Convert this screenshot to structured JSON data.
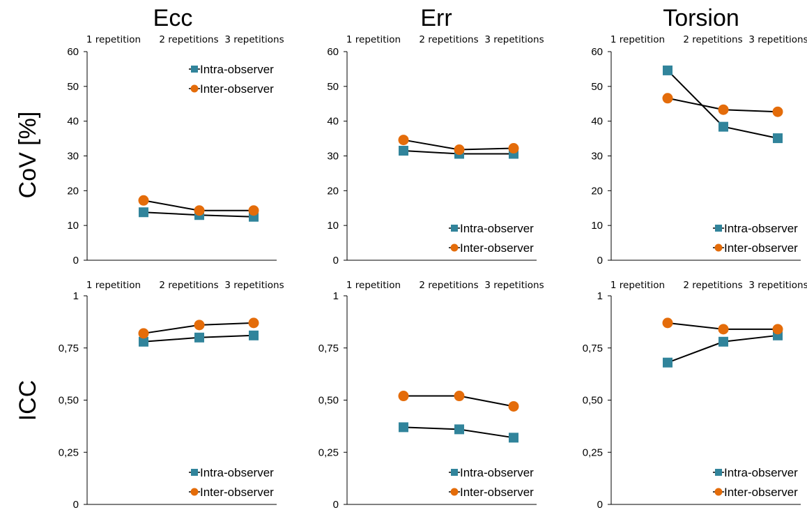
{
  "row_labels": [
    "CoV [%]",
    "ICC"
  ],
  "colors": {
    "intra": "#31849b",
    "inter": "#e46c0a"
  },
  "chart_data": [
    {
      "type": "line",
      "title": "Ecc",
      "ylabel": "CoV [%]",
      "categories": [
        "1 repetition",
        "2 repetitions",
        "3 repetitions"
      ],
      "ylim": [
        0,
        60
      ],
      "yticks": [
        "0",
        "10",
        "20",
        "30",
        "40",
        "50",
        "60"
      ],
      "legend": "top-right",
      "series": [
        {
          "name": "Intra-observer",
          "marker": "square",
          "values": [
            13.8,
            13.0,
            12.5
          ]
        },
        {
          "name": "Inter-observer",
          "marker": "circle",
          "values": [
            17.2,
            14.3,
            14.3
          ]
        }
      ]
    },
    {
      "type": "line",
      "title": "Err",
      "ylabel": "CoV [%]",
      "categories": [
        "1 repetition",
        "2 repetitions",
        "3 repetitions"
      ],
      "ylim": [
        0,
        60
      ],
      "yticks": [
        "0",
        "10",
        "20",
        "30",
        "40",
        "50",
        "60"
      ],
      "legend": "bottom-right",
      "series": [
        {
          "name": "Intra-observer",
          "marker": "square",
          "values": [
            31.5,
            30.6,
            30.6
          ]
        },
        {
          "name": "Inter-observer",
          "marker": "circle",
          "values": [
            34.6,
            31.8,
            32.2
          ]
        }
      ]
    },
    {
      "type": "line",
      "title": "Torsion",
      "ylabel": "CoV [%]",
      "categories": [
        "1 repetition",
        "2 repetitions",
        "3 repetitions"
      ],
      "ylim": [
        0,
        60
      ],
      "yticks": [
        "0",
        "10",
        "20",
        "30",
        "40",
        "50",
        "60"
      ],
      "legend": "bottom-right",
      "series": [
        {
          "name": "Intra-observer",
          "marker": "square",
          "values": [
            54.6,
            38.4,
            35.1
          ]
        },
        {
          "name": "Inter-observer",
          "marker": "circle",
          "values": [
            46.6,
            43.3,
            42.7
          ]
        }
      ]
    },
    {
      "type": "line",
      "title": "Ecc",
      "ylabel": "ICC",
      "categories": [
        "1 repetition",
        "2 repetitions",
        "3 repetitions"
      ],
      "ylim": [
        0,
        1
      ],
      "yticks": [
        "0",
        "0,25",
        "0,50",
        "0,75",
        "1"
      ],
      "legend": "bottom-right",
      "series": [
        {
          "name": "Intra-observer",
          "marker": "square",
          "values": [
            0.78,
            0.8,
            0.81
          ]
        },
        {
          "name": "Inter-observer",
          "marker": "circle",
          "values": [
            0.82,
            0.86,
            0.87
          ]
        }
      ]
    },
    {
      "type": "line",
      "title": "Err",
      "ylabel": "ICC",
      "categories": [
        "1 repetition",
        "2 repetitions",
        "3 repetitions"
      ],
      "ylim": [
        0,
        1
      ],
      "yticks": [
        "0",
        "0,25",
        "0,50",
        "0,75",
        "1"
      ],
      "legend": "bottom-right",
      "series": [
        {
          "name": "Intra-observer",
          "marker": "square",
          "values": [
            0.37,
            0.36,
            0.32
          ]
        },
        {
          "name": "Inter-observer",
          "marker": "circle",
          "values": [
            0.52,
            0.52,
            0.47
          ]
        }
      ]
    },
    {
      "type": "line",
      "title": "Torsion",
      "ylabel": "ICC",
      "categories": [
        "1 repetition",
        "2 repetitions",
        "3 repetitions"
      ],
      "ylim": [
        0,
        1
      ],
      "yticks": [
        "0",
        "0,25",
        "0,50",
        "0,75",
        "1"
      ],
      "legend": "bottom-right",
      "series": [
        {
          "name": "Intra-observer",
          "marker": "square",
          "values": [
            0.68,
            0.78,
            0.81
          ]
        },
        {
          "name": "Inter-observer",
          "marker": "circle",
          "values": [
            0.87,
            0.84,
            0.84
          ]
        }
      ]
    }
  ]
}
